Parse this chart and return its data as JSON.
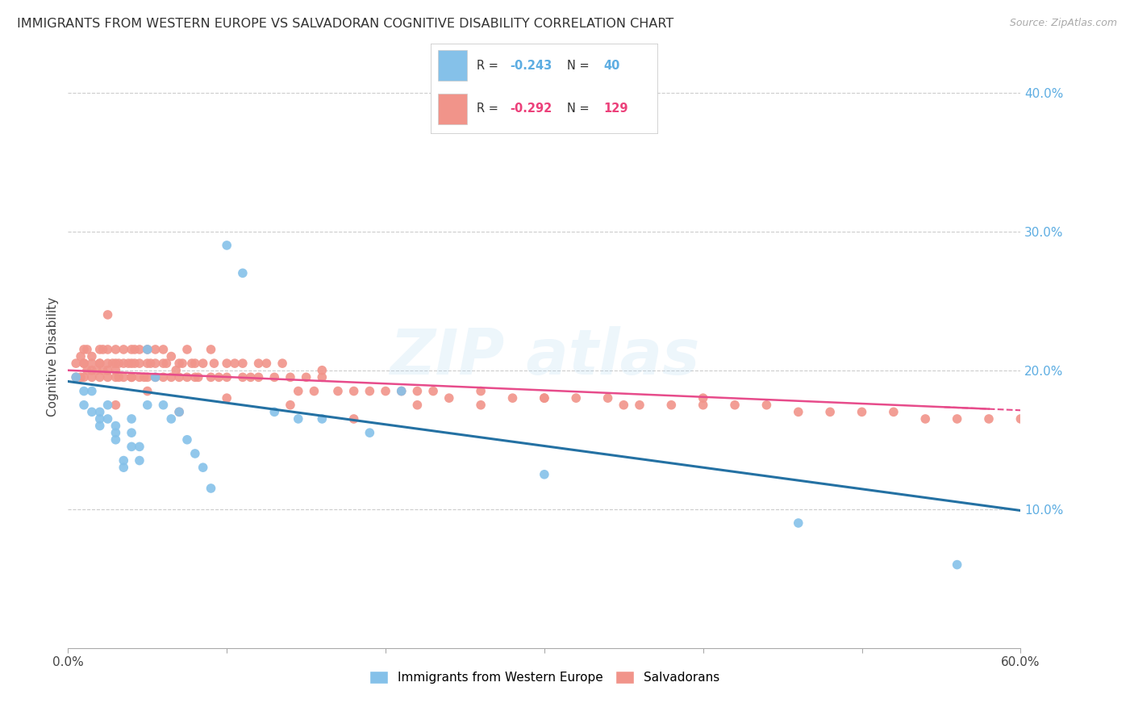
{
  "title": "IMMIGRANTS FROM WESTERN EUROPE VS SALVADORAN COGNITIVE DISABILITY CORRELATION CHART",
  "source": "Source: ZipAtlas.com",
  "ylabel": "Cognitive Disability",
  "blue_color": "#85c1e9",
  "pink_color": "#f1948a",
  "blue_line_color": "#2471a3",
  "pink_line_color": "#e74c8b",
  "xlim": [
    0.0,
    0.6
  ],
  "ylim": [
    0.0,
    0.42
  ],
  "x_ticks": [
    0.0,
    0.1,
    0.2,
    0.3,
    0.4,
    0.5,
    0.6
  ],
  "y_ticks": [
    0.1,
    0.2,
    0.3,
    0.4
  ],
  "y_tick_labels_right": [
    "10.0%",
    "20.0%",
    "30.0%",
    "40.0%"
  ],
  "blue_R": -0.243,
  "blue_N": 40,
  "pink_R": -0.292,
  "pink_N": 129,
  "blue_intercept": 0.192,
  "blue_slope": -0.155,
  "pink_intercept": 0.2,
  "pink_slope": -0.048,
  "blue_scatter_x": [
    0.005,
    0.01,
    0.01,
    0.015,
    0.015,
    0.02,
    0.02,
    0.02,
    0.025,
    0.025,
    0.03,
    0.03,
    0.03,
    0.035,
    0.035,
    0.04,
    0.04,
    0.04,
    0.045,
    0.045,
    0.05,
    0.05,
    0.055,
    0.06,
    0.065,
    0.07,
    0.075,
    0.08,
    0.085,
    0.09,
    0.1,
    0.11,
    0.13,
    0.145,
    0.16,
    0.19,
    0.21,
    0.3,
    0.46,
    0.56
  ],
  "blue_scatter_y": [
    0.195,
    0.175,
    0.185,
    0.185,
    0.17,
    0.17,
    0.165,
    0.16,
    0.175,
    0.165,
    0.155,
    0.15,
    0.16,
    0.135,
    0.13,
    0.155,
    0.165,
    0.145,
    0.145,
    0.135,
    0.215,
    0.175,
    0.195,
    0.175,
    0.165,
    0.17,
    0.15,
    0.14,
    0.13,
    0.115,
    0.29,
    0.27,
    0.17,
    0.165,
    0.165,
    0.155,
    0.185,
    0.125,
    0.09,
    0.06
  ],
  "pink_scatter_x": [
    0.005,
    0.005,
    0.008,
    0.008,
    0.01,
    0.01,
    0.01,
    0.01,
    0.012,
    0.012,
    0.015,
    0.015,
    0.015,
    0.015,
    0.018,
    0.02,
    0.02,
    0.02,
    0.02,
    0.022,
    0.022,
    0.025,
    0.025,
    0.025,
    0.025,
    0.028,
    0.03,
    0.03,
    0.03,
    0.03,
    0.032,
    0.032,
    0.035,
    0.035,
    0.035,
    0.038,
    0.04,
    0.04,
    0.04,
    0.04,
    0.042,
    0.042,
    0.045,
    0.045,
    0.045,
    0.048,
    0.05,
    0.05,
    0.05,
    0.052,
    0.055,
    0.055,
    0.055,
    0.06,
    0.06,
    0.06,
    0.062,
    0.065,
    0.065,
    0.068,
    0.07,
    0.07,
    0.072,
    0.075,
    0.075,
    0.078,
    0.08,
    0.08,
    0.082,
    0.085,
    0.09,
    0.09,
    0.092,
    0.095,
    0.1,
    0.1,
    0.105,
    0.11,
    0.11,
    0.115,
    0.12,
    0.12,
    0.125,
    0.13,
    0.135,
    0.14,
    0.145,
    0.15,
    0.155,
    0.16,
    0.17,
    0.18,
    0.19,
    0.2,
    0.21,
    0.22,
    0.23,
    0.24,
    0.26,
    0.28,
    0.3,
    0.32,
    0.34,
    0.36,
    0.38,
    0.4,
    0.42,
    0.44,
    0.46,
    0.48,
    0.5,
    0.52,
    0.54,
    0.56,
    0.58,
    0.6,
    0.025,
    0.16,
    0.26,
    0.3,
    0.35,
    0.4,
    0.22,
    0.18,
    0.14,
    0.1,
    0.07,
    0.05,
    0.03
  ],
  "pink_scatter_y": [
    0.205,
    0.195,
    0.21,
    0.195,
    0.205,
    0.215,
    0.195,
    0.205,
    0.215,
    0.2,
    0.205,
    0.195,
    0.21,
    0.2,
    0.2,
    0.205,
    0.215,
    0.195,
    0.205,
    0.2,
    0.215,
    0.205,
    0.195,
    0.215,
    0.2,
    0.205,
    0.205,
    0.195,
    0.215,
    0.2,
    0.205,
    0.195,
    0.215,
    0.205,
    0.195,
    0.205,
    0.215,
    0.195,
    0.205,
    0.195,
    0.215,
    0.205,
    0.215,
    0.195,
    0.205,
    0.195,
    0.205,
    0.215,
    0.195,
    0.205,
    0.215,
    0.195,
    0.205,
    0.215,
    0.205,
    0.195,
    0.205,
    0.195,
    0.21,
    0.2,
    0.205,
    0.195,
    0.205,
    0.215,
    0.195,
    0.205,
    0.195,
    0.205,
    0.195,
    0.205,
    0.215,
    0.195,
    0.205,
    0.195,
    0.205,
    0.195,
    0.205,
    0.195,
    0.205,
    0.195,
    0.205,
    0.195,
    0.205,
    0.195,
    0.205,
    0.195,
    0.185,
    0.195,
    0.185,
    0.195,
    0.185,
    0.185,
    0.185,
    0.185,
    0.185,
    0.185,
    0.185,
    0.18,
    0.185,
    0.18,
    0.18,
    0.18,
    0.18,
    0.175,
    0.175,
    0.175,
    0.175,
    0.175,
    0.17,
    0.17,
    0.17,
    0.17,
    0.165,
    0.165,
    0.165,
    0.165,
    0.24,
    0.2,
    0.175,
    0.18,
    0.175,
    0.18,
    0.175,
    0.165,
    0.175,
    0.18,
    0.17,
    0.185,
    0.175
  ]
}
